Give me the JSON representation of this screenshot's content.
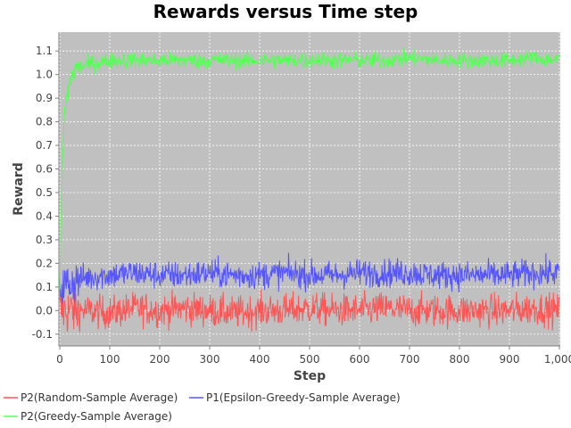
{
  "chart_data": {
    "type": "line",
    "title": "Rewards versus Time step",
    "xlabel": "Step",
    "ylabel": "Reward",
    "xlim": [
      0,
      1000
    ],
    "ylim": [
      -0.15,
      1.18
    ],
    "x_ticks": [
      0,
      100,
      200,
      300,
      400,
      500,
      600,
      700,
      800,
      900,
      1000
    ],
    "x_tick_labels": [
      "0",
      "100",
      "200",
      "300",
      "400",
      "500",
      "600",
      "700",
      "800",
      "900",
      "1,000"
    ],
    "y_ticks": [
      -0.1,
      0.0,
      0.1,
      0.2,
      0.3,
      0.4,
      0.5,
      0.6,
      0.7,
      0.8,
      0.9,
      1.0,
      1.1
    ],
    "y_tick_labels": [
      "-0.1",
      "0.0",
      "0.1",
      "0.2",
      "0.3",
      "0.4",
      "0.5",
      "0.6",
      "0.7",
      "0.8",
      "0.9",
      "1.0",
      "1.1"
    ],
    "grid": true,
    "legend_position": "bottom",
    "background_color": "#c0c0c0",
    "series": [
      {
        "name": "P2(Random-Sample Average)",
        "color": "#ff5555",
        "x": [
          0,
          50,
          100,
          150,
          200,
          250,
          300,
          350,
          400,
          450,
          500,
          550,
          600,
          650,
          700,
          750,
          800,
          850,
          900,
          950,
          1000
        ],
        "values": [
          0.0,
          0.0,
          -0.01,
          0.01,
          0.0,
          0.01,
          0.0,
          -0.01,
          0.0,
          0.0,
          0.01,
          0.0,
          0.0,
          0.01,
          0.0,
          0.0,
          0.0,
          0.0,
          0.0,
          0.01,
          0.0
        ],
        "noise": 0.035
      },
      {
        "name": "P1(Epsilon-Greedy-Sample Average)",
        "color": "#5555ff",
        "x": [
          0,
          50,
          100,
          150,
          200,
          250,
          300,
          350,
          400,
          450,
          500,
          550,
          600,
          650,
          700,
          750,
          800,
          850,
          900,
          950,
          1000
        ],
        "values": [
          0.1,
          0.14,
          0.15,
          0.16,
          0.15,
          0.15,
          0.16,
          0.15,
          0.15,
          0.16,
          0.15,
          0.15,
          0.16,
          0.16,
          0.16,
          0.15,
          0.15,
          0.15,
          0.15,
          0.16,
          0.16
        ],
        "noise": 0.03
      },
      {
        "name": "P2(Greedy-Sample Average)",
        "color": "#55ff55",
        "x": [
          0,
          5,
          10,
          20,
          30,
          50,
          75,
          100,
          150,
          200,
          250,
          300,
          350,
          400,
          450,
          500,
          550,
          600,
          650,
          700,
          750,
          800,
          850,
          900,
          950,
          1000
        ],
        "values": [
          0.1,
          0.6,
          0.85,
          0.97,
          1.02,
          1.04,
          1.05,
          1.06,
          1.06,
          1.06,
          1.06,
          1.06,
          1.06,
          1.06,
          1.06,
          1.06,
          1.06,
          1.06,
          1.06,
          1.07,
          1.06,
          1.06,
          1.06,
          1.06,
          1.07,
          1.06
        ],
        "noise": 0.018
      }
    ]
  }
}
